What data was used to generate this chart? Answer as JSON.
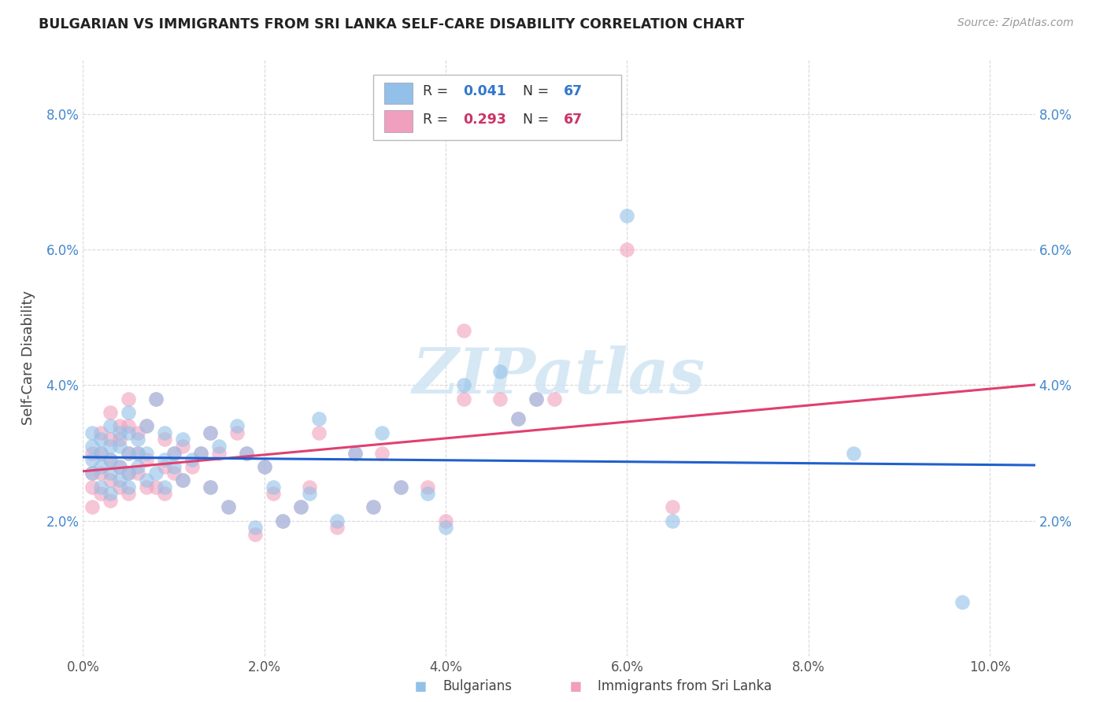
{
  "title": "BULGARIAN VS IMMIGRANTS FROM SRI LANKA SELF-CARE DISABILITY CORRELATION CHART",
  "source": "Source: ZipAtlas.com",
  "ylabel": "Self-Care Disability",
  "xlim": [
    0.0,
    0.105
  ],
  "ylim": [
    0.0,
    0.088
  ],
  "xticks": [
    0.0,
    0.02,
    0.04,
    0.06,
    0.08,
    0.1
  ],
  "yticks": [
    0.0,
    0.02,
    0.04,
    0.06,
    0.08
  ],
  "xticklabels": [
    "0.0%",
    "2.0%",
    "4.0%",
    "6.0%",
    "8.0%",
    "10.0%"
  ],
  "yticklabels_left": [
    "",
    "2.0%",
    "4.0%",
    "6.0%",
    "8.0%"
  ],
  "yticklabels_right": [
    "",
    "2.0%",
    "4.0%",
    "6.0%",
    "8.0%"
  ],
  "legend1_r": "0.041",
  "legend1_n": "67",
  "legend2_r": "0.293",
  "legend2_n": "67",
  "blue_color": "#92c0e8",
  "pink_color": "#f0a0bc",
  "blue_line_color": "#2060cc",
  "pink_line_color": "#e04070",
  "pink_line_dash": true,
  "watermark_text": "ZIPatlas",
  "watermark_color": "#d0e4f4",
  "background": "#ffffff",
  "grid_color": "#d0d0d0",
  "title_color": "#222222",
  "source_color": "#999999",
  "tick_color": "#4488cc",
  "label_color": "#555555",
  "bulgarians_x": [
    0.001,
    0.001,
    0.001,
    0.001,
    0.002,
    0.002,
    0.002,
    0.002,
    0.003,
    0.003,
    0.003,
    0.003,
    0.003,
    0.004,
    0.004,
    0.004,
    0.004,
    0.005,
    0.005,
    0.005,
    0.005,
    0.005,
    0.006,
    0.006,
    0.006,
    0.007,
    0.007,
    0.007,
    0.008,
    0.008,
    0.009,
    0.009,
    0.009,
    0.01,
    0.01,
    0.011,
    0.011,
    0.012,
    0.013,
    0.014,
    0.014,
    0.015,
    0.016,
    0.017,
    0.018,
    0.019,
    0.02,
    0.021,
    0.022,
    0.024,
    0.025,
    0.026,
    0.028,
    0.03,
    0.032,
    0.033,
    0.035,
    0.038,
    0.04,
    0.042,
    0.048,
    0.05,
    0.06,
    0.085,
    0.046,
    0.065,
    0.097
  ],
  "bulgarians_y": [
    0.027,
    0.029,
    0.031,
    0.033,
    0.025,
    0.028,
    0.03,
    0.032,
    0.024,
    0.027,
    0.029,
    0.031,
    0.034,
    0.026,
    0.028,
    0.031,
    0.033,
    0.025,
    0.027,
    0.03,
    0.033,
    0.036,
    0.028,
    0.03,
    0.032,
    0.026,
    0.03,
    0.034,
    0.027,
    0.038,
    0.025,
    0.029,
    0.033,
    0.028,
    0.03,
    0.026,
    0.032,
    0.029,
    0.03,
    0.025,
    0.033,
    0.031,
    0.022,
    0.034,
    0.03,
    0.019,
    0.028,
    0.025,
    0.02,
    0.022,
    0.024,
    0.035,
    0.02,
    0.03,
    0.022,
    0.033,
    0.025,
    0.024,
    0.019,
    0.04,
    0.035,
    0.038,
    0.065,
    0.03,
    0.042,
    0.02,
    0.008
  ],
  "srilanka_x": [
    0.001,
    0.001,
    0.001,
    0.001,
    0.002,
    0.002,
    0.002,
    0.002,
    0.003,
    0.003,
    0.003,
    0.003,
    0.003,
    0.004,
    0.004,
    0.004,
    0.004,
    0.005,
    0.005,
    0.005,
    0.005,
    0.005,
    0.006,
    0.006,
    0.006,
    0.007,
    0.007,
    0.007,
    0.008,
    0.008,
    0.009,
    0.009,
    0.009,
    0.01,
    0.01,
    0.011,
    0.011,
    0.012,
    0.013,
    0.014,
    0.014,
    0.015,
    0.016,
    0.017,
    0.018,
    0.019,
    0.02,
    0.021,
    0.022,
    0.024,
    0.025,
    0.026,
    0.028,
    0.03,
    0.032,
    0.033,
    0.035,
    0.038,
    0.04,
    0.042,
    0.048,
    0.05,
    0.06,
    0.042,
    0.046,
    0.065,
    0.052
  ],
  "srilanka_y": [
    0.025,
    0.027,
    0.03,
    0.022,
    0.024,
    0.027,
    0.03,
    0.033,
    0.023,
    0.026,
    0.029,
    0.032,
    0.036,
    0.025,
    0.028,
    0.032,
    0.034,
    0.024,
    0.027,
    0.03,
    0.034,
    0.038,
    0.027,
    0.03,
    0.033,
    0.025,
    0.029,
    0.034,
    0.025,
    0.038,
    0.024,
    0.028,
    0.032,
    0.027,
    0.03,
    0.026,
    0.031,
    0.028,
    0.03,
    0.025,
    0.033,
    0.03,
    0.022,
    0.033,
    0.03,
    0.018,
    0.028,
    0.024,
    0.02,
    0.022,
    0.025,
    0.033,
    0.019,
    0.03,
    0.022,
    0.03,
    0.025,
    0.025,
    0.02,
    0.038,
    0.035,
    0.038,
    0.06,
    0.048,
    0.038,
    0.022,
    0.038
  ]
}
